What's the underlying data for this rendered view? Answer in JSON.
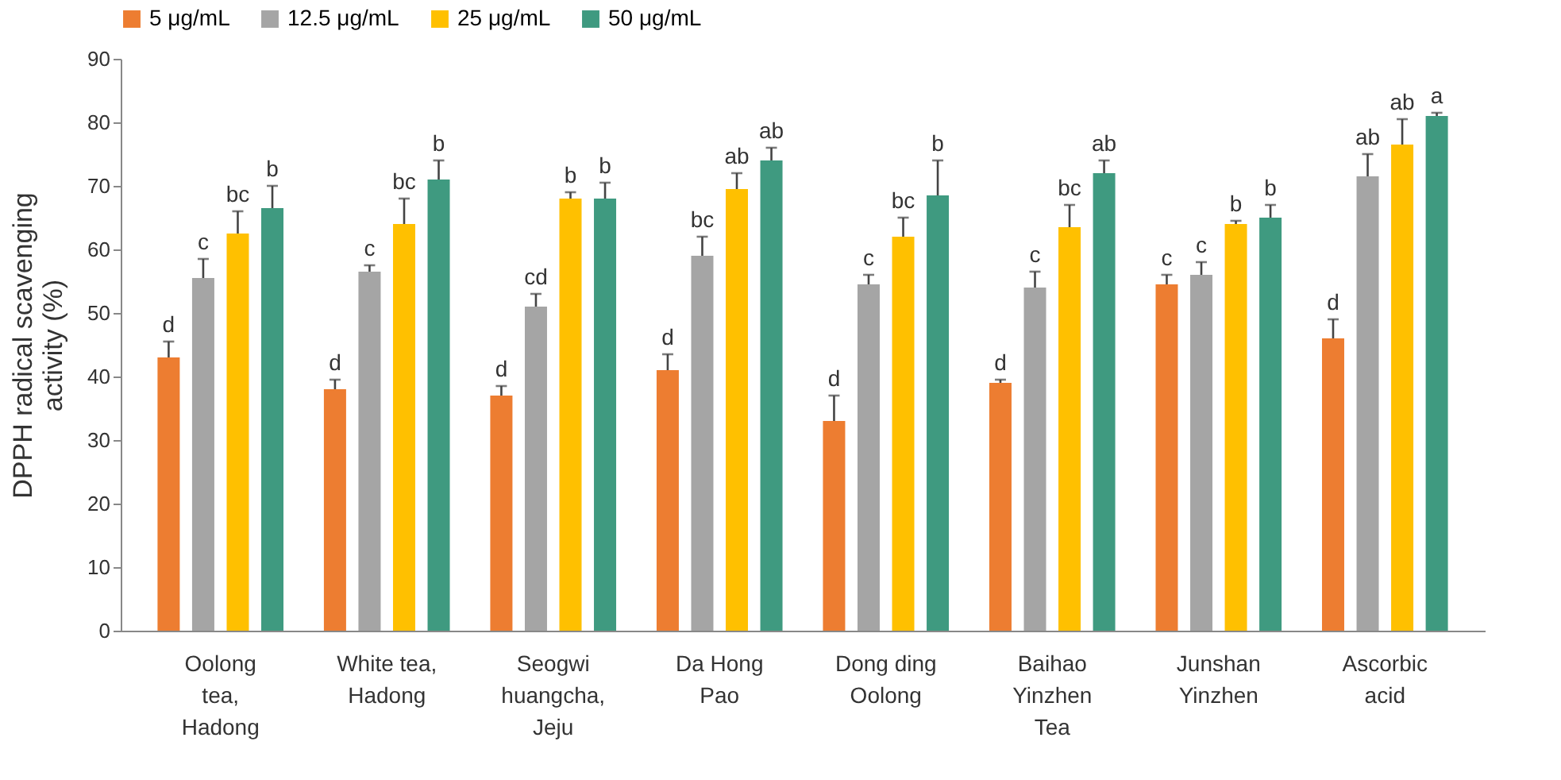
{
  "chart_data": {
    "type": "bar",
    "ylabel": "DPPH radical scavenging\nactivity (%)",
    "categories": [
      "Oolong\ntea,\nHadong",
      "White tea,\nHadong",
      "Seogwi\nhuangcha,\nJeju",
      "Da Hong\nPao",
      "Dong ding\nOolong",
      "Baihao\nYinzhen\nTea",
      "Junshan\nYinzhen",
      "Ascorbic\nacid"
    ],
    "series": [
      {
        "name": "5 μg/mL",
        "color": "#ed7d31",
        "values": [
          43,
          38,
          37,
          41,
          33,
          39,
          54.5,
          46
        ],
        "errors": [
          [
            43,
            45.5
          ],
          [
            38,
            39.5
          ],
          [
            37,
            38.5
          ],
          [
            41,
            43.5
          ],
          [
            33,
            37
          ],
          [
            39,
            39.5
          ],
          [
            54.5,
            56
          ],
          [
            46,
            49
          ]
        ],
        "value_labels": [
          "d",
          "d",
          "d",
          "d",
          "d",
          "d",
          "c",
          "d"
        ]
      },
      {
        "name": "12.5 μg/mL",
        "color": "#a5a5a5",
        "values": [
          55.5,
          56.5,
          51,
          59,
          54.5,
          54,
          56,
          71.5
        ],
        "errors": [
          [
            55.5,
            58.5
          ],
          [
            56.5,
            57.5
          ],
          [
            51,
            53
          ],
          [
            59,
            62
          ],
          [
            54.5,
            56
          ],
          [
            54,
            56.5
          ],
          [
            56,
            58
          ],
          [
            71.5,
            75
          ]
        ],
        "value_labels": [
          "c",
          "c",
          "cd",
          "bc",
          "c",
          "c",
          "c",
          "ab"
        ]
      },
      {
        "name": "25 μg/mL",
        "color": "#ffc000",
        "values": [
          62.5,
          64,
          68,
          69.5,
          62,
          63.5,
          64,
          76.5
        ],
        "errors": [
          [
            62.5,
            66
          ],
          [
            64,
            68
          ],
          [
            68,
            69
          ],
          [
            69.5,
            72
          ],
          [
            62,
            65
          ],
          [
            63.5,
            67
          ],
          [
            64,
            64.5
          ],
          [
            76.5,
            80.5
          ]
        ],
        "value_labels": [
          "bc",
          "bc",
          "b",
          "ab",
          "bc",
          "bc",
          "b",
          "ab"
        ]
      },
      {
        "name": "50 μg/mL",
        "color": "#3f9a80",
        "values": [
          66.5,
          71,
          68,
          74,
          68.5,
          72,
          65,
          81
        ],
        "errors": [
          [
            66.5,
            70
          ],
          [
            71,
            74
          ],
          [
            68,
            70.5
          ],
          [
            74,
            76
          ],
          [
            68.5,
            74
          ],
          [
            72,
            74
          ],
          [
            65,
            67
          ],
          [
            81,
            81.5
          ]
        ],
        "value_labels": [
          "b",
          "b",
          "b",
          "ab",
          "b",
          "ab",
          "b",
          "a"
        ]
      }
    ],
    "ylim": [
      0,
      90
    ],
    "yticks": [
      0,
      10,
      20,
      30,
      40,
      50,
      60,
      70,
      80,
      90
    ],
    "grid": false,
    "legend": "top left"
  }
}
